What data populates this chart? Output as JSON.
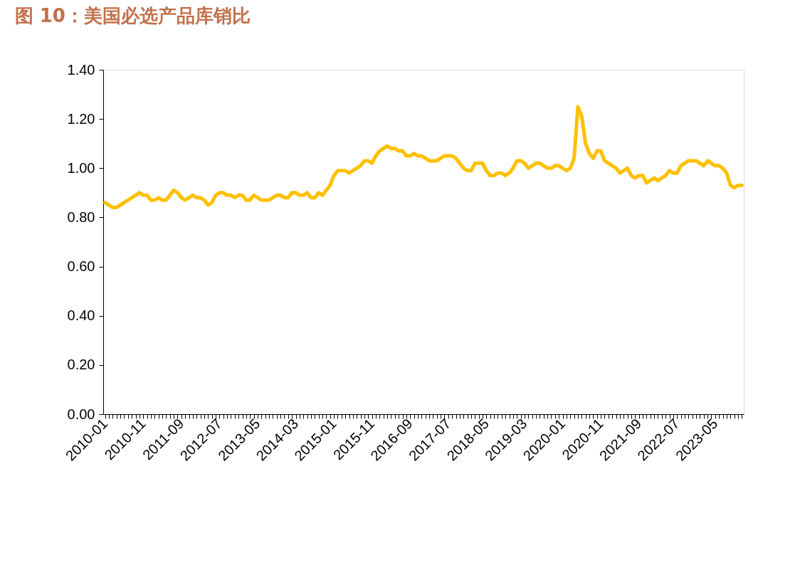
{
  "chart_data": {
    "type": "line",
    "title": "图 10：美国必选产品库销比",
    "categories": [
      "2010-01",
      null,
      null,
      null,
      null,
      null,
      null,
      null,
      null,
      null,
      "2010-11",
      null,
      null,
      null,
      null,
      null,
      null,
      null,
      null,
      null,
      "2011-09",
      null,
      null,
      null,
      null,
      null,
      null,
      null,
      null,
      null,
      "2012-07",
      null,
      null,
      null,
      null,
      null,
      null,
      null,
      null,
      null,
      "2013-05",
      null,
      null,
      null,
      null,
      null,
      null,
      null,
      null,
      null,
      "2014-03",
      null,
      null,
      null,
      null,
      null,
      null,
      null,
      null,
      null,
      "2015-01",
      null,
      null,
      null,
      null,
      null,
      null,
      null,
      null,
      null,
      "2015-11",
      null,
      null,
      null,
      null,
      null,
      null,
      null,
      null,
      null,
      "2016-09",
      null,
      null,
      null,
      null,
      null,
      null,
      null,
      null,
      null,
      "2017-07",
      null,
      null,
      null,
      null,
      null,
      null,
      null,
      null,
      null,
      "2018-05",
      null,
      null,
      null,
      null,
      null,
      null,
      null,
      null,
      null,
      "2019-03",
      null,
      null,
      null,
      null,
      null,
      null,
      null,
      null,
      null,
      "2020-01",
      null,
      null,
      null,
      null,
      null,
      null,
      null,
      null,
      null,
      "2020-11",
      null,
      null,
      null,
      null,
      null,
      null,
      null,
      null,
      null,
      "2021-09",
      null,
      null,
      null,
      null,
      null,
      null,
      null,
      null,
      null,
      "2022-07",
      null,
      null,
      null,
      null,
      null,
      null,
      null,
      null,
      null,
      "2023-05",
      null,
      null,
      null,
      null,
      null,
      null,
      null
    ],
    "series": [
      {
        "color": "#ffc000",
        "values": [
          0.86,
          0.85,
          0.84,
          0.84,
          0.85,
          0.86,
          0.87,
          0.88,
          0.89,
          0.9,
          0.89,
          0.89,
          0.87,
          0.87,
          0.88,
          0.87,
          0.87,
          0.89,
          0.91,
          0.9,
          0.88,
          0.87,
          0.88,
          0.89,
          0.88,
          0.88,
          0.87,
          0.85,
          0.86,
          0.89,
          0.9,
          0.9,
          0.89,
          0.89,
          0.88,
          0.89,
          0.89,
          0.87,
          0.87,
          0.89,
          0.88,
          0.87,
          0.87,
          0.87,
          0.88,
          0.89,
          0.89,
          0.88,
          0.88,
          0.9,
          0.9,
          0.89,
          0.89,
          0.9,
          0.88,
          0.88,
          0.9,
          0.89,
          0.91,
          0.93,
          0.97,
          0.99,
          0.99,
          0.99,
          0.98,
          0.99,
          1.0,
          1.01,
          1.03,
          1.03,
          1.02,
          1.05,
          1.07,
          1.08,
          1.09,
          1.08,
          1.08,
          1.07,
          1.07,
          1.05,
          1.05,
          1.06,
          1.05,
          1.05,
          1.04,
          1.03,
          1.03,
          1.03,
          1.04,
          1.05,
          1.05,
          1.05,
          1.04,
          1.02,
          1.0,
          0.99,
          0.99,
          1.02,
          1.02,
          1.02,
          0.99,
          0.97,
          0.97,
          0.98,
          0.98,
          0.97,
          0.98,
          1.0,
          1.03,
          1.03,
          1.02,
          1.0,
          1.01,
          1.02,
          1.02,
          1.01,
          1.0,
          1.0,
          1.01,
          1.01,
          1.0,
          0.99,
          1.0,
          1.04,
          1.25,
          1.21,
          1.1,
          1.06,
          1.04,
          1.07,
          1.07,
          1.03,
          1.02,
          1.01,
          1.0,
          0.98,
          0.99,
          1.0,
          0.97,
          0.96,
          0.97,
          0.97,
          0.94,
          0.95,
          0.96,
          0.95,
          0.96,
          0.97,
          0.99,
          0.98,
          0.98,
          1.01,
          1.02,
          1.03,
          1.03,
          1.03,
          1.02,
          1.01,
          1.03,
          1.02,
          1.01,
          1.01,
          1.0,
          0.98,
          0.93,
          0.92,
          0.93,
          0.93
        ]
      }
    ],
    "ylim": [
      0,
      1.4
    ],
    "yticks": [
      {
        "value": 0,
        "label": "0.00"
      },
      {
        "value": 0.2,
        "label": "0.20"
      },
      {
        "value": 0.4,
        "label": "0.40"
      },
      {
        "value": 0.6,
        "label": "0.60"
      },
      {
        "value": 0.8,
        "label": "0.80"
      },
      {
        "value": 1.0,
        "label": "1.00"
      },
      {
        "value": 1.2,
        "label": "1.20"
      },
      {
        "value": 1.4,
        "label": "1.40"
      }
    ],
    "grid": false,
    "legend": false,
    "marker": "none",
    "line_style": "solid"
  }
}
